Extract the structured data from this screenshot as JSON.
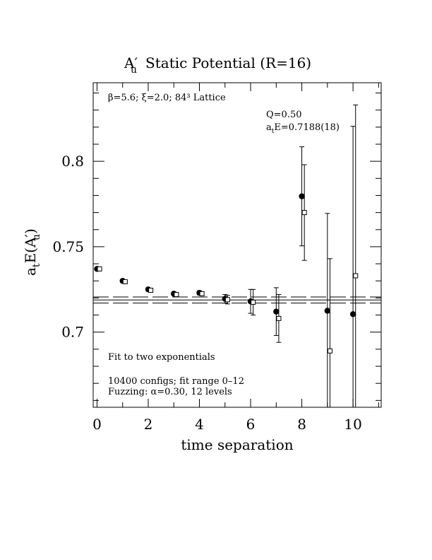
{
  "chart_data": {
    "type": "scatter",
    "title": "A′u  Static Potential (R=16)",
    "title_main": "A",
    "title_prime": "′",
    "title_sub": "u",
    "title_rest": "Static Potential (R=16)",
    "xlabel": "time separation",
    "ylabel": "aₜE(A′u)",
    "ylabel_a": "a",
    "ylabel_t": "t",
    "ylabel_E": "E(A",
    "ylabel_prime": "′",
    "ylabel_u": "u",
    "ylabel_close": ")",
    "xlim": [
      -0.15,
      11.1
    ],
    "ylim": [
      0.656,
      0.846
    ],
    "x_ticks": [
      0,
      2,
      4,
      6,
      8,
      10
    ],
    "x_tick_labels": [
      "0",
      "2",
      "4",
      "6",
      "8",
      "10"
    ],
    "y_ticks": [
      0.7,
      0.75,
      0.8
    ],
    "y_tick_labels": [
      "0.7",
      "0.75",
      "0.8"
    ],
    "grid": false,
    "annotations": {
      "lattice": "β=5.6; ξ=2.0; 84³ Lattice",
      "q_value": "Q=0.50",
      "fit_energy": "aₜE=0.7188(18)",
      "fit_energy_a": "a",
      "fit_energy_t": "t",
      "fit_energy_rest": "E=0.7188(18)",
      "fit_type": "Fit to two exponentials",
      "configs": "10400 configs; fit range 0–12",
      "fuzzing": "Fuzzing: α=0.30, 12 levels"
    },
    "fit": {
      "value": 0.7188,
      "error": 0.0018
    },
    "series": [
      {
        "marker": "filled-circle",
        "x": [
          0,
          1,
          2,
          3,
          4,
          5,
          6,
          7,
          8,
          9,
          10
        ],
        "y": [
          0.737,
          0.73,
          0.725,
          0.7225,
          0.723,
          0.7195,
          0.718,
          0.712,
          0.7795,
          0.7125,
          0.7105
        ],
        "err": [
          0.0005,
          0.0007,
          0.0008,
          0.001,
          0.0012,
          0.0025,
          0.007,
          0.014,
          0.029,
          0.057,
          0.11
        ]
      },
      {
        "marker": "open-square",
        "x": [
          0.1,
          1.1,
          2.1,
          3.1,
          4.1,
          5.1,
          6.1,
          7.1,
          8.1,
          9.1,
          10.1
        ],
        "y": [
          0.737,
          0.7295,
          0.7245,
          0.722,
          0.7225,
          0.719,
          0.7175,
          0.708,
          0.77,
          0.689,
          0.733
        ],
        "err": [
          0.0005,
          0.0007,
          0.0008,
          0.001,
          0.0012,
          0.0025,
          0.0075,
          0.014,
          0.028,
          0.054,
          0.1
        ]
      }
    ]
  }
}
